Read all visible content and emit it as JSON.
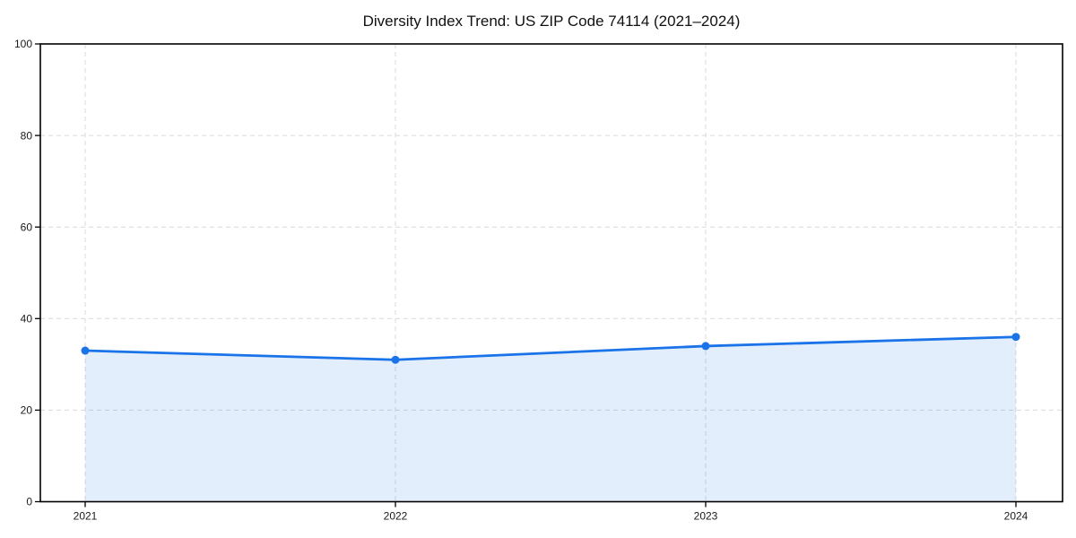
{
  "chart_data": {
    "type": "line",
    "variant": "area-filled-line-with-markers",
    "title": "Diversity Index Trend: US ZIP Code 74114 (2021–2024)",
    "categories": [
      "2021",
      "2022",
      "2023",
      "2024"
    ],
    "values": [
      33,
      31,
      34,
      36
    ],
    "xlabel": "",
    "ylabel": "",
    "ylim": [
      0,
      100
    ],
    "yticks": [
      0,
      20,
      40,
      60,
      80,
      100
    ],
    "grid": true,
    "grid_style": "dashed",
    "legend": false,
    "colors": {
      "line": "#1a73e8",
      "marker": "#1a73e8",
      "area_fill": "#1a73e8",
      "area_fill_opacity": 0.12,
      "grid": "#d9d9d9",
      "spine": "#000000",
      "text": "#1a1a1a",
      "background": "#ffffff"
    }
  }
}
